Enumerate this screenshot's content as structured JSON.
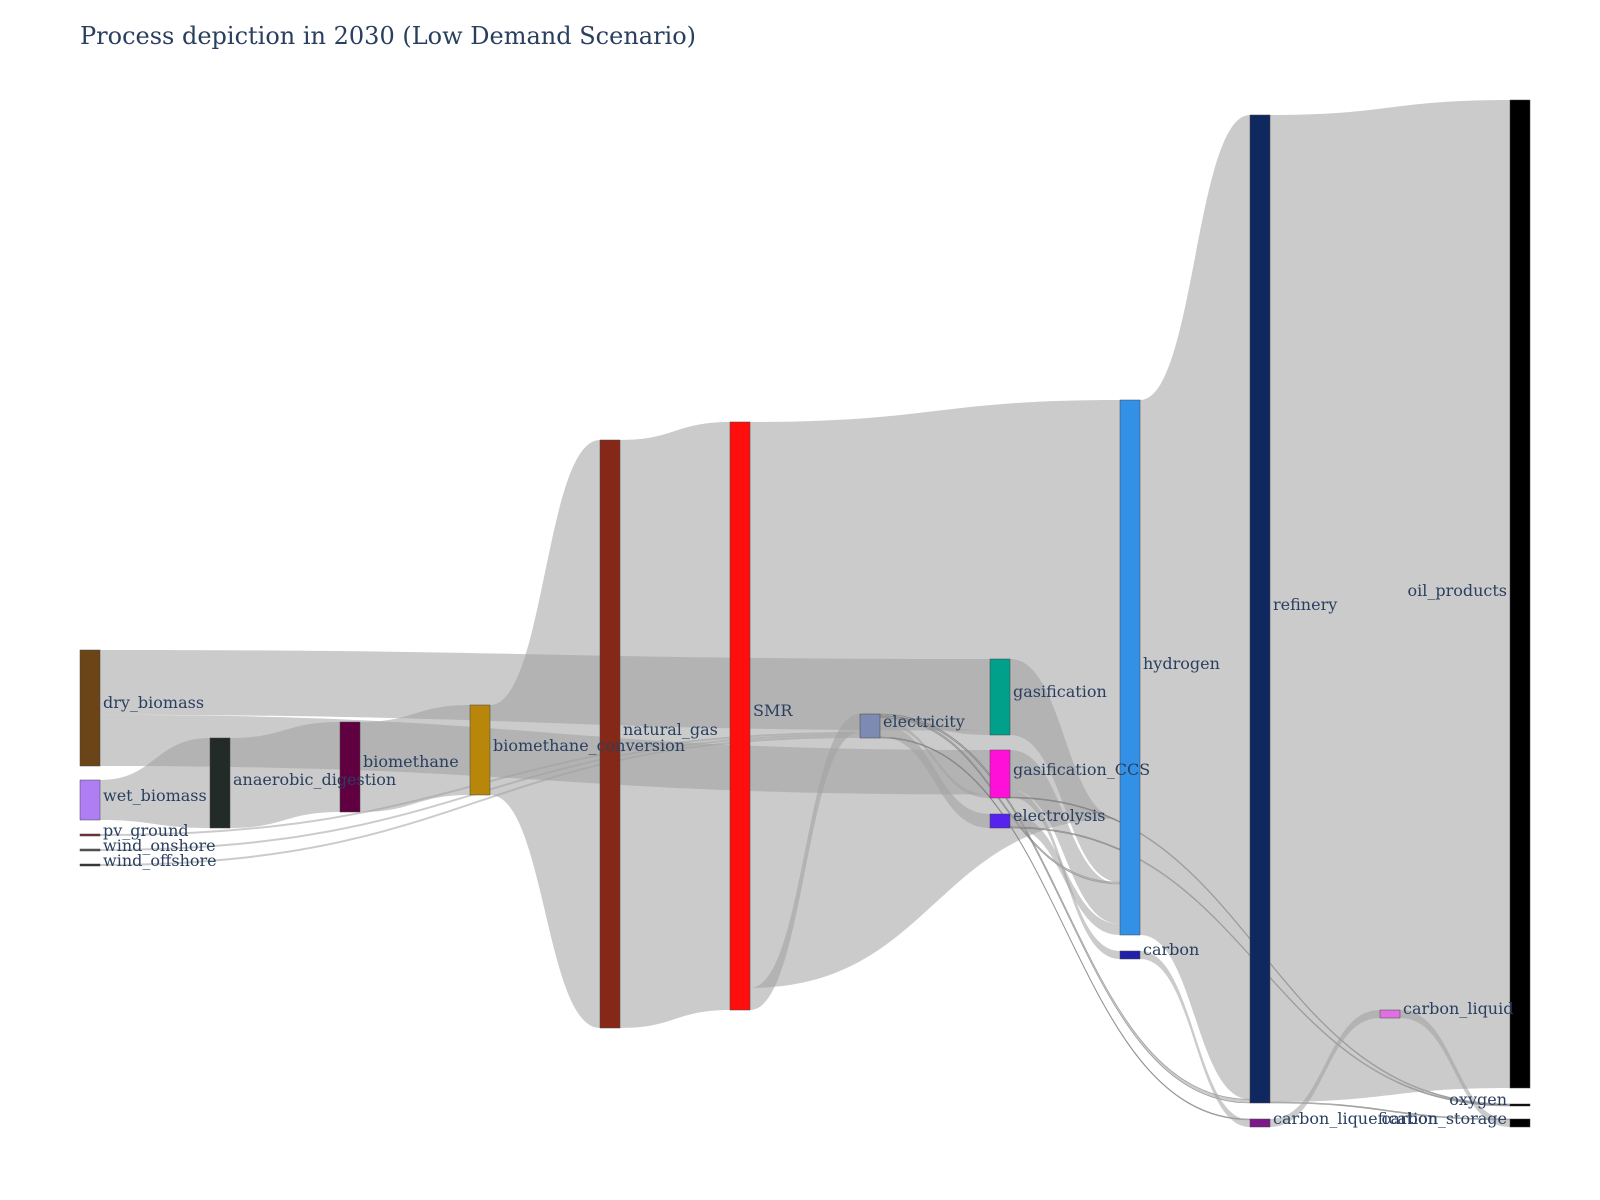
{
  "title": "Process depiction in 2030 (Low Demand Scenario)",
  "nodes": [
    {
      "id": "dry_biomass",
      "label": "dry_biomass",
      "color": "#6b4517"
    },
    {
      "id": "wet_biomass",
      "label": "wet_biomass",
      "color": "#b07ef4"
    },
    {
      "id": "pv_ground",
      "label": "pv_ground",
      "color": "#7a2a2a"
    },
    {
      "id": "wind_onshore",
      "label": "wind_onshore",
      "color": "#555555"
    },
    {
      "id": "wind_offshore",
      "label": "wind_offshore",
      "color": "#333333"
    },
    {
      "id": "anaerobic_digestion",
      "label": "anaerobic_digestion",
      "color": "#222b28"
    },
    {
      "id": "biomethane",
      "label": "biomethane",
      "color": "#600040"
    },
    {
      "id": "biomethane_conversion",
      "label": "biomethane_conversion",
      "color": "#b8860b"
    },
    {
      "id": "natural_gas",
      "label": "natural_gas",
      "color": "#862817"
    },
    {
      "id": "SMR",
      "label": "SMR",
      "color": "#ff0e0e"
    },
    {
      "id": "electricity",
      "label": "electricity",
      "color": "#7b8bb2"
    },
    {
      "id": "gasification",
      "label": "gasification",
      "color": "#00a08a"
    },
    {
      "id": "gasification_CCS",
      "label": "gasification_CCS",
      "color": "#ff10d8"
    },
    {
      "id": "electrolysis",
      "label": "electrolysis",
      "color": "#5522ee"
    },
    {
      "id": "hydrogen",
      "label": "hydrogen",
      "color": "#3290e6"
    },
    {
      "id": "carbon",
      "label": "carbon",
      "color": "#2020aa"
    },
    {
      "id": "refinery",
      "label": "refinery",
      "color": "#102860"
    },
    {
      "id": "carbon_liquefication",
      "label": "carbon_liquefication",
      "color": "#7d1a8a"
    },
    {
      "id": "carbon_liquid",
      "label": "carbon_liquid",
      "color": "#e070e0"
    },
    {
      "id": "oil_products",
      "label": "oil_products",
      "color": "#000000"
    },
    {
      "id": "oxygen",
      "label": "oxygen",
      "color": "#000000"
    },
    {
      "id": "carbon_storage",
      "label": "carbon_storage",
      "color": "#000000"
    }
  ],
  "links": [
    {
      "source": "dry_biomass",
      "target": "gasification",
      "value": 3.3
    },
    {
      "source": "dry_biomass",
      "target": "gasification_CCS",
      "value": 2.6
    },
    {
      "source": "wet_biomass",
      "target": "anaerobic_digestion",
      "value": 1.9
    },
    {
      "source": "anaerobic_digestion",
      "target": "biomethane",
      "value": 4.6
    },
    {
      "source": "biomethane",
      "target": "biomethane_conversion",
      "value": 4.6
    },
    {
      "source": "biomethane_conversion",
      "target": "natural_gas",
      "value": 4.6
    },
    {
      "source": "pv_ground",
      "target": "electricity",
      "value": 0.1
    },
    {
      "source": "wind_onshore",
      "target": "electricity",
      "value": 0.1
    },
    {
      "source": "wind_offshore",
      "target": "electricity",
      "value": 0.1
    },
    {
      "source": "natural_gas",
      "target": "SMR",
      "value": 29.5
    },
    {
      "source": "SMR",
      "target": "hydrogen",
      "value": 23.0
    },
    {
      "source": "SMR",
      "target": "electricity",
      "value": 0.9
    },
    {
      "source": "electricity",
      "target": "gasification",
      "value": 0.2
    },
    {
      "source": "electricity",
      "target": "gasification_CCS",
      "value": 0.2
    },
    {
      "source": "electricity",
      "target": "electrolysis",
      "value": 0.7
    },
    {
      "source": "electricity",
      "target": "hydrogen",
      "value": 0.1
    },
    {
      "source": "electricity",
      "target": "refinery",
      "value": 0.1
    },
    {
      "source": "electricity",
      "target": "carbon_liquefication",
      "value": 0.05
    },
    {
      "source": "gasification",
      "target": "hydrogen",
      "value": 3.5
    },
    {
      "source": "gasification_CCS",
      "target": "hydrogen",
      "value": 2.2
    },
    {
      "source": "gasification_CCS",
      "target": "carbon",
      "value": 0.4
    },
    {
      "source": "gasification_CCS",
      "target": "oxygen",
      "value": 0.05
    },
    {
      "source": "electrolysis",
      "target": "hydrogen",
      "value": 0.6
    },
    {
      "source": "electrolysis",
      "target": "oxygen",
      "value": 0.05
    },
    {
      "source": "hydrogen",
      "target": "refinery",
      "value": 26.8
    },
    {
      "source": "carbon",
      "target": "carbon_liquefication",
      "value": 0.4
    },
    {
      "source": "refinery",
      "target": "oil_products",
      "value": 49.5
    },
    {
      "source": "refinery",
      "target": "carbon_storage",
      "value": 0.05
    },
    {
      "source": "carbon_liquefication",
      "target": "carbon_liquid",
      "value": 0.4
    },
    {
      "source": "carbon_liquid",
      "target": "carbon_storage",
      "value": 0.4
    }
  ]
}
